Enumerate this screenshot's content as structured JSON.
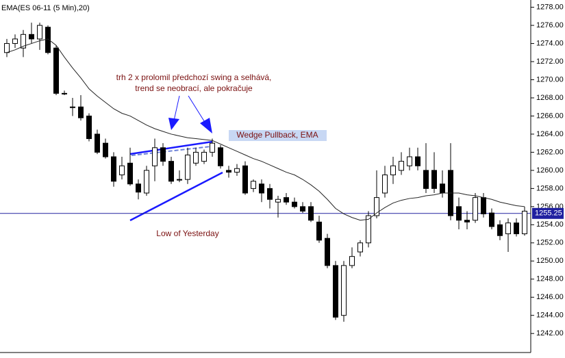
{
  "chart_data": {
    "type": "candlestick",
    "title": "EMA(ES 06-11 (5 Min),20)",
    "ylim": [
      1239.9,
      1278.8
    ],
    "yticks": [
      {
        "value": 1242,
        "label": "1242.00"
      },
      {
        "value": 1244,
        "label": "1244.00"
      },
      {
        "value": 1246,
        "label": "1246.00"
      },
      {
        "value": 1248,
        "label": "1248.00"
      },
      {
        "value": 1250,
        "label": "1250.00"
      },
      {
        "value": 1252,
        "label": "1252.00"
      },
      {
        "value": 1254,
        "label": "1254.00"
      },
      {
        "value": 1256,
        "label": "1256.00"
      },
      {
        "value": 1258,
        "label": "1258.00"
      },
      {
        "value": 1260,
        "label": "1260.00"
      },
      {
        "value": 1262,
        "label": "1262.00"
      },
      {
        "value": 1264,
        "label": "1264.00"
      },
      {
        "value": 1266,
        "label": "1266.00"
      },
      {
        "value": 1268,
        "label": "1268.00"
      },
      {
        "value": 1270,
        "label": "1270.00"
      },
      {
        "value": 1272,
        "label": "1272.00"
      },
      {
        "value": 1274,
        "label": "1274.00"
      },
      {
        "value": 1276,
        "label": "1276.00"
      },
      {
        "value": 1278,
        "label": "1278.00"
      }
    ],
    "up_color": "#ffffff",
    "down_color": "#000000",
    "open": [
      1273,
      1274,
      1273.5,
      1275,
      1274.5,
      1275.8,
      1273.5,
      1268.5,
      1267,
      1267,
      1266,
      1264,
      1263,
      1261.5,
      1259.5,
      1260.8,
      1258.5,
      1257.5,
      1260.5,
      1262.5,
      1261,
      1259,
      1259,
      1260.8,
      1261,
      1262,
      1262.5,
      1260,
      1259.8,
      1260.5,
      1258,
      1258.5,
      1258,
      1256.5,
      1257,
      1256.5,
      1256,
      1256,
      1254.3,
      1252.5,
      1249.5,
      1244,
      1249.5,
      1251,
      1252,
      1255,
      1257.5,
      1259.5,
      1260,
      1260.5,
      1261.5,
      1260,
      1260,
      1258.5,
      1260,
      1256,
      1254.5,
      1254.5,
      1257,
      1255.3,
      1254,
      1253,
      1254.2,
      1253
    ],
    "high": [
      1274.5,
      1275,
      1275.5,
      1276.3,
      1276.3,
      1276,
      1273.8,
      1268.8,
      1268,
      1268.3,
      1266.3,
      1264.5,
      1263.5,
      1262,
      1261.5,
      1262.5,
      1259,
      1260.5,
      1263.5,
      1263,
      1261.5,
      1260,
      1262.5,
      1262.5,
      1262.3,
      1263.5,
      1262.8,
      1260.5,
      1260.7,
      1261,
      1259,
      1259,
      1258.5,
      1257.2,
      1257.5,
      1257,
      1256.5,
      1256.5,
      1255,
      1253,
      1250,
      1250,
      1251.5,
      1252.3,
      1255.5,
      1260,
      1260.5,
      1261.5,
      1262,
      1262.5,
      1262.5,
      1263,
      1262,
      1260,
      1263,
      1257,
      1255.5,
      1257.5,
      1257.5,
      1255.8,
      1254.5,
      1254.7,
      1254.7,
      1256
    ],
    "low": [
      1272.5,
      1273.5,
      1272.5,
      1274,
      1273.3,
      1272.8,
      1268.3,
      1268.3,
      1266,
      1265.5,
      1263.2,
      1261.8,
      1261.3,
      1258.2,
      1259,
      1258.3,
      1256.8,
      1257.2,
      1258.8,
      1260.5,
      1258.5,
      1258.7,
      1258.5,
      1260.5,
      1260.7,
      1261.5,
      1260.2,
      1259.2,
      1259.4,
      1257.3,
      1257.6,
      1256.5,
      1255.8,
      1254.8,
      1256.2,
      1255.8,
      1255.3,
      1254.3,
      1252,
      1249.2,
      1243.5,
      1243.3,
      1249.2,
      1250.5,
      1251.5,
      1254.7,
      1257,
      1258.5,
      1259.5,
      1260,
      1260,
      1257.5,
      1257.5,
      1257,
      1254.5,
      1253.5,
      1253.5,
      1254.2,
      1254.8,
      1253.5,
      1252.3,
      1251,
      1252.7,
      1252.8
    ],
    "close": [
      1274,
      1274.5,
      1275,
      1274.5,
      1276,
      1273,
      1268.5,
      1268.5,
      1267,
      1265.8,
      1263.5,
      1262,
      1261.5,
      1258.8,
      1260.5,
      1258.5,
      1257.6,
      1260,
      1262.5,
      1261,
      1258.8,
      1259,
      1261.7,
      1262,
      1262,
      1263,
      1260.5,
      1259.8,
      1260.2,
      1257.5,
      1258.8,
      1257.5,
      1256.8,
      1256.8,
      1256.5,
      1256,
      1255.5,
      1254.5,
      1252.3,
      1249.5,
      1243.8,
      1249.5,
      1250.5,
      1252,
      1255,
      1257,
      1259.5,
      1260.5,
      1261,
      1261.5,
      1260.5,
      1258,
      1258,
      1257.5,
      1255,
      1254.5,
      1254.3,
      1257,
      1255.2,
      1253.8,
      1252.8,
      1254.2,
      1253,
      1255.5
    ],
    "ema": {
      "color": "#222222",
      "values": [
        1273,
        1273.3,
        1273.7,
        1274,
        1274.3,
        1274.5,
        1273.8,
        1272.5,
        1271.3,
        1270.2,
        1269,
        1268.2,
        1267.5,
        1266.8,
        1266.3,
        1266,
        1265.5,
        1265,
        1264.6,
        1264.3,
        1264,
        1263.8,
        1263.6,
        1263.5,
        1263.4,
        1263.3,
        1262.9,
        1262.5,
        1262.1,
        1261.7,
        1261.3,
        1261,
        1260.6,
        1260.2,
        1259.8,
        1259.5,
        1259,
        1258.4,
        1257.7,
        1256.8,
        1255.8,
        1255.2,
        1254.8,
        1254.5,
        1254.6,
        1255.3,
        1255.9,
        1256.4,
        1256.7,
        1256.9,
        1257,
        1257.2,
        1257.3,
        1257.5,
        1257.5,
        1257.5,
        1257.3,
        1257.2,
        1257,
        1256.8,
        1256.5,
        1256.3,
        1256.1,
        1256
      ]
    },
    "hline": {
      "value": 1255.25,
      "label": "1255.25",
      "color": "#2020a0"
    },
    "annotations": [
      "trh 2 x prolomil předchozí swing a selhává,",
      "trend se neobrací, ale pokračuje",
      "Wedge Pullback, EMA",
      "Low of Yesterday"
    ]
  }
}
